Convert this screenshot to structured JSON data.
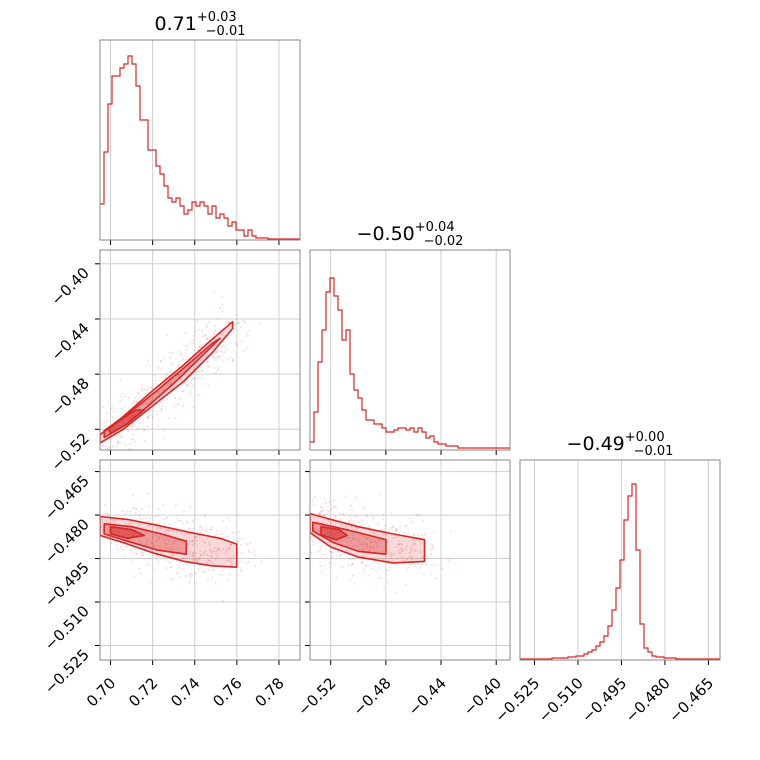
{
  "chart_data": {
    "type": "corner",
    "color": "#d62728",
    "grid": true,
    "parameters": [
      {
        "title": "0.71",
        "title_plus": "+0.03",
        "title_minus": "−0.01",
        "range": [
          0.695,
          0.79
        ],
        "ticks": [
          0.7,
          0.72,
          0.74,
          0.76,
          0.78
        ],
        "tick_labels": [
          "0.70",
          "0.72",
          "0.74",
          "0.76",
          "0.78"
        ],
        "hist_edges_start": 0.695,
        "hist_bin_width": 0.0019,
        "hist_counts": [
          0.18,
          0.44,
          0.68,
          0.82,
          0.82,
          0.86,
          0.88,
          0.92,
          0.88,
          0.77,
          0.6,
          0.6,
          0.45,
          0.45,
          0.37,
          0.33,
          0.27,
          0.21,
          0.19,
          0.21,
          0.17,
          0.13,
          0.15,
          0.19,
          0.17,
          0.19,
          0.17,
          0.13,
          0.17,
          0.11,
          0.13,
          0.11,
          0.07,
          0.09,
          0.05,
          0.05,
          0.02,
          0.05,
          0.02,
          0.01,
          0.01,
          0.01,
          0.005,
          0.005,
          0.005,
          0.005,
          0.005,
          0.005,
          0.005,
          0.005
        ]
      },
      {
        "title": "−0.50",
        "title_plus": "+0.04",
        "title_minus": "−0.02",
        "range": [
          -0.535,
          -0.39
        ],
        "ticks": [
          -0.52,
          -0.48,
          -0.44,
          -0.4
        ],
        "tick_labels": [
          "−0.52",
          "−0.48",
          "−0.44",
          "−0.40"
        ],
        "hist_edges_start": -0.535,
        "hist_bin_width": 0.0029,
        "hist_counts": [
          0.04,
          0.19,
          0.44,
          0.6,
          0.79,
          0.86,
          0.77,
          0.7,
          0.55,
          0.6,
          0.38,
          0.3,
          0.26,
          0.2,
          0.15,
          0.15,
          0.13,
          0.13,
          0.11,
          0.09,
          0.09,
          0.1,
          0.11,
          0.11,
          0.1,
          0.11,
          0.09,
          0.11,
          0.09,
          0.06,
          0.07,
          0.04,
          0.03,
          0.03,
          0.02,
          0.02,
          0.02,
          0.01,
          0.01,
          0.01,
          0.01,
          0.01,
          0.01,
          0.01,
          0.01,
          0.01,
          0.01,
          0.01,
          0.01,
          0.01
        ]
      },
      {
        "title": "−0.49",
        "title_plus": "+0.00",
        "title_minus": "−0.01",
        "range": [
          -0.53,
          -0.461
        ],
        "ticks": [
          -0.525,
          -0.51,
          -0.495,
          -0.48,
          -0.465
        ],
        "tick_labels": [
          "−0.525",
          "−0.510",
          "−0.495",
          "−0.480",
          "−0.465"
        ],
        "hist_edges_start": -0.53,
        "hist_bin_width": 0.00138,
        "hist_counts": [
          0.005,
          0.005,
          0.005,
          0.005,
          0.005,
          0.005,
          0.005,
          0.005,
          0.01,
          0.01,
          0.01,
          0.01,
          0.015,
          0.015,
          0.02,
          0.02,
          0.03,
          0.04,
          0.05,
          0.07,
          0.09,
          0.12,
          0.17,
          0.25,
          0.36,
          0.5,
          0.7,
          0.82,
          0.88,
          0.55,
          0.18,
          0.06,
          0.04,
          0.02,
          0.015,
          0.015,
          0.01,
          0.01,
          0.01,
          0.005,
          0.005,
          0.005,
          0.005,
          0.005,
          0.005,
          0.005,
          0.005,
          0.005,
          0.005,
          0.005
        ]
      }
    ],
    "pairs": [
      {
        "x_param": 0,
        "y_param": 1,
        "regions": [
          [
            [
              0.695,
              -0.53
            ],
            [
              0.706,
              -0.52
            ],
            [
              0.72,
              -0.503
            ],
            [
              0.735,
              -0.485
            ],
            [
              0.748,
              -0.465
            ],
            [
              0.758,
              -0.447
            ],
            [
              0.758,
              -0.442
            ],
            [
              0.748,
              -0.455
            ],
            [
              0.735,
              -0.473
            ],
            [
              0.72,
              -0.492
            ],
            [
              0.705,
              -0.512
            ],
            [
              0.695,
              -0.524
            ]
          ],
          [
            [
              0.697,
              -0.526
            ],
            [
              0.707,
              -0.517
            ],
            [
              0.718,
              -0.503
            ],
            [
              0.732,
              -0.484
            ],
            [
              0.744,
              -0.466
            ],
            [
              0.752,
              -0.454
            ],
            [
              0.748,
              -0.458
            ],
            [
              0.736,
              -0.474
            ],
            [
              0.722,
              -0.492
            ],
            [
              0.708,
              -0.509
            ],
            [
              0.697,
              -0.521
            ]
          ],
          [
            [
              0.7,
              -0.523
            ],
            [
              0.708,
              -0.516
            ],
            [
              0.716,
              -0.506
            ],
            [
              0.712,
              -0.506
            ],
            [
              0.703,
              -0.515
            ],
            [
              0.699,
              -0.52
            ]
          ]
        ],
        "points_seed": 11
      },
      {
        "x_param": 0,
        "y_param": 2,
        "regions": [
          [
            [
              0.695,
              -0.4805
            ],
            [
              0.708,
              -0.4815
            ],
            [
              0.722,
              -0.4835
            ],
            [
              0.738,
              -0.486
            ],
            [
              0.752,
              -0.488
            ],
            [
              0.76,
              -0.49
            ],
            [
              0.76,
              -0.498
            ],
            [
              0.748,
              -0.4975
            ],
            [
              0.735,
              -0.496
            ],
            [
              0.72,
              -0.493
            ],
            [
              0.706,
              -0.4895
            ],
            [
              0.695,
              -0.487
            ]
          ],
          [
            [
              0.697,
              -0.483
            ],
            [
              0.71,
              -0.484
            ],
            [
              0.724,
              -0.4865
            ],
            [
              0.736,
              -0.489
            ],
            [
              0.736,
              -0.4935
            ],
            [
              0.722,
              -0.492
            ],
            [
              0.708,
              -0.489
            ],
            [
              0.697,
              -0.4865
            ]
          ],
          [
            [
              0.7,
              -0.484
            ],
            [
              0.71,
              -0.485
            ],
            [
              0.716,
              -0.487
            ],
            [
              0.708,
              -0.488
            ],
            [
              0.7,
              -0.4865
            ]
          ]
        ],
        "points_seed": 23
      },
      {
        "x_param": 1,
        "y_param": 2,
        "regions": [
          [
            [
              -0.535,
              -0.4795
            ],
            [
              -0.52,
              -0.4815
            ],
            [
              -0.5,
              -0.484
            ],
            [
              -0.475,
              -0.4865
            ],
            [
              -0.452,
              -0.4885
            ],
            [
              -0.452,
              -0.496
            ],
            [
              -0.475,
              -0.4965
            ],
            [
              -0.5,
              -0.4945
            ],
            [
              -0.52,
              -0.491
            ],
            [
              -0.535,
              -0.486
            ]
          ],
          [
            [
              -0.533,
              -0.4825
            ],
            [
              -0.518,
              -0.484
            ],
            [
              -0.5,
              -0.486
            ],
            [
              -0.48,
              -0.4885
            ],
            [
              -0.48,
              -0.4935
            ],
            [
              -0.5,
              -0.4925
            ],
            [
              -0.518,
              -0.4895
            ],
            [
              -0.533,
              -0.4855
            ]
          ],
          [
            [
              -0.527,
              -0.484
            ],
            [
              -0.514,
              -0.485
            ],
            [
              -0.508,
              -0.487
            ],
            [
              -0.516,
              -0.4885
            ],
            [
              -0.527,
              -0.4868
            ]
          ]
        ],
        "points_seed": 37
      }
    ]
  }
}
